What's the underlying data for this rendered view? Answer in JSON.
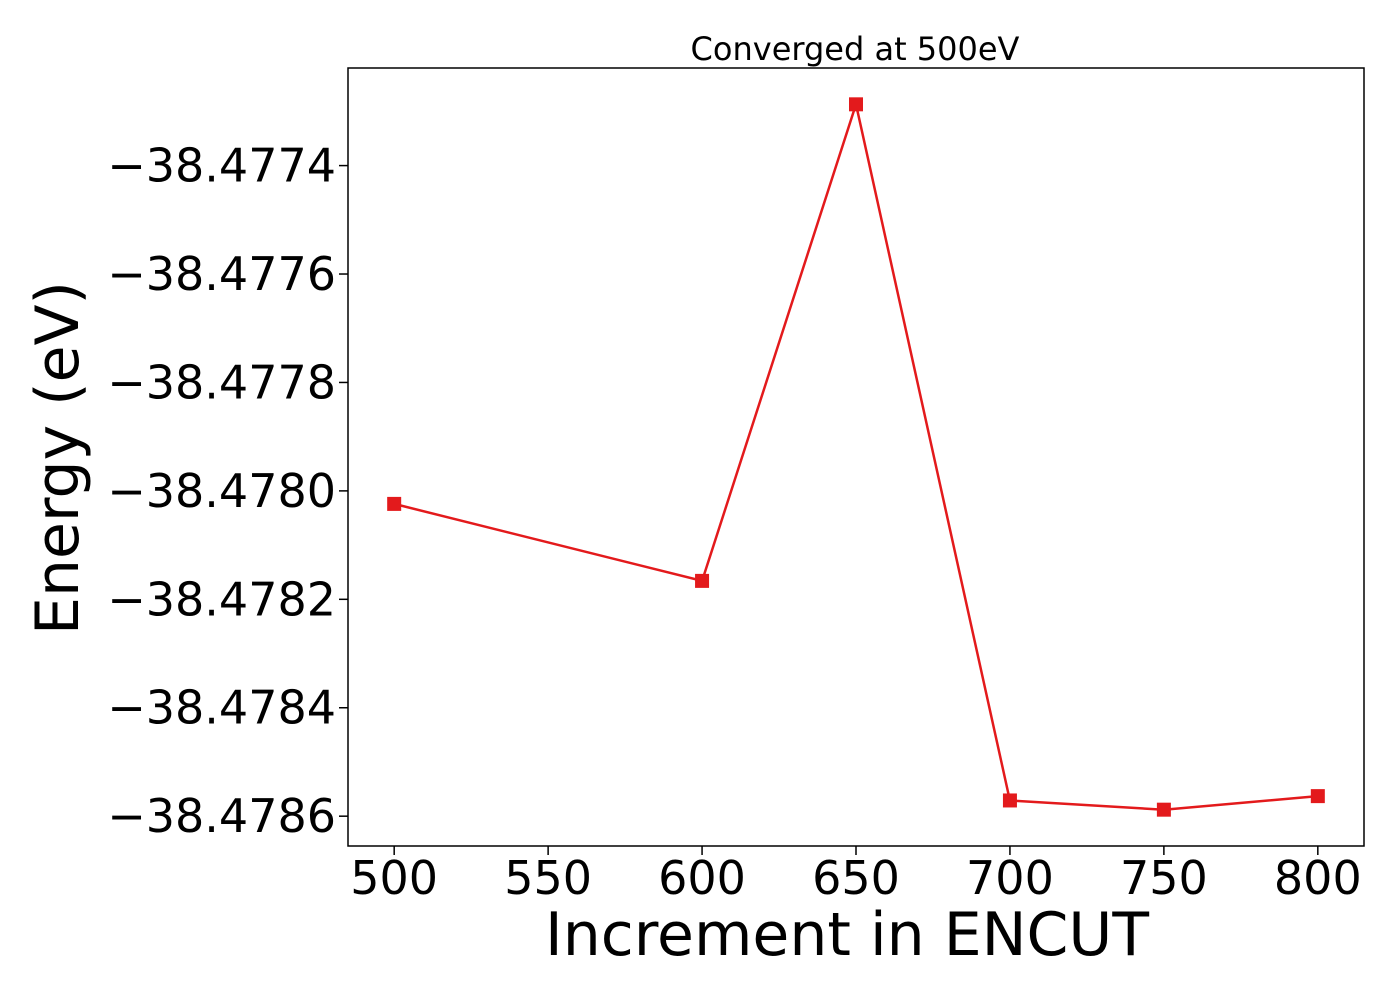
{
  "chart_data": {
    "type": "line",
    "title": "Converged at 500eV",
    "xlabel": "Increment in ENCUT",
    "ylabel": "Energy (eV)",
    "x": [
      500,
      600,
      650,
      700,
      750,
      800
    ],
    "series": [
      {
        "values": [
          -38.478024,
          -38.478166,
          -38.477287,
          -38.478571,
          -38.478588,
          -38.478563
        ],
        "color": "#e31a1c",
        "marker": "square"
      }
    ],
    "xlim": [
      485,
      815
    ],
    "ylim": [
      -38.478655,
      -38.47722
    ],
    "xticks": [
      500,
      550,
      600,
      650,
      700,
      750,
      800
    ],
    "xtick_labels": [
      "500",
      "550",
      "600",
      "650",
      "700",
      "750",
      "800"
    ],
    "yticks": [
      -38.4774,
      -38.4776,
      -38.4778,
      -38.478,
      -38.4782,
      -38.4784,
      -38.4786
    ],
    "ytick_labels": [
      "−38.4774",
      "−38.4776",
      "−38.4778",
      "−38.4780",
      "−38.4782",
      "−38.4784",
      "−38.4786"
    ],
    "grid": false,
    "legend": "none"
  }
}
